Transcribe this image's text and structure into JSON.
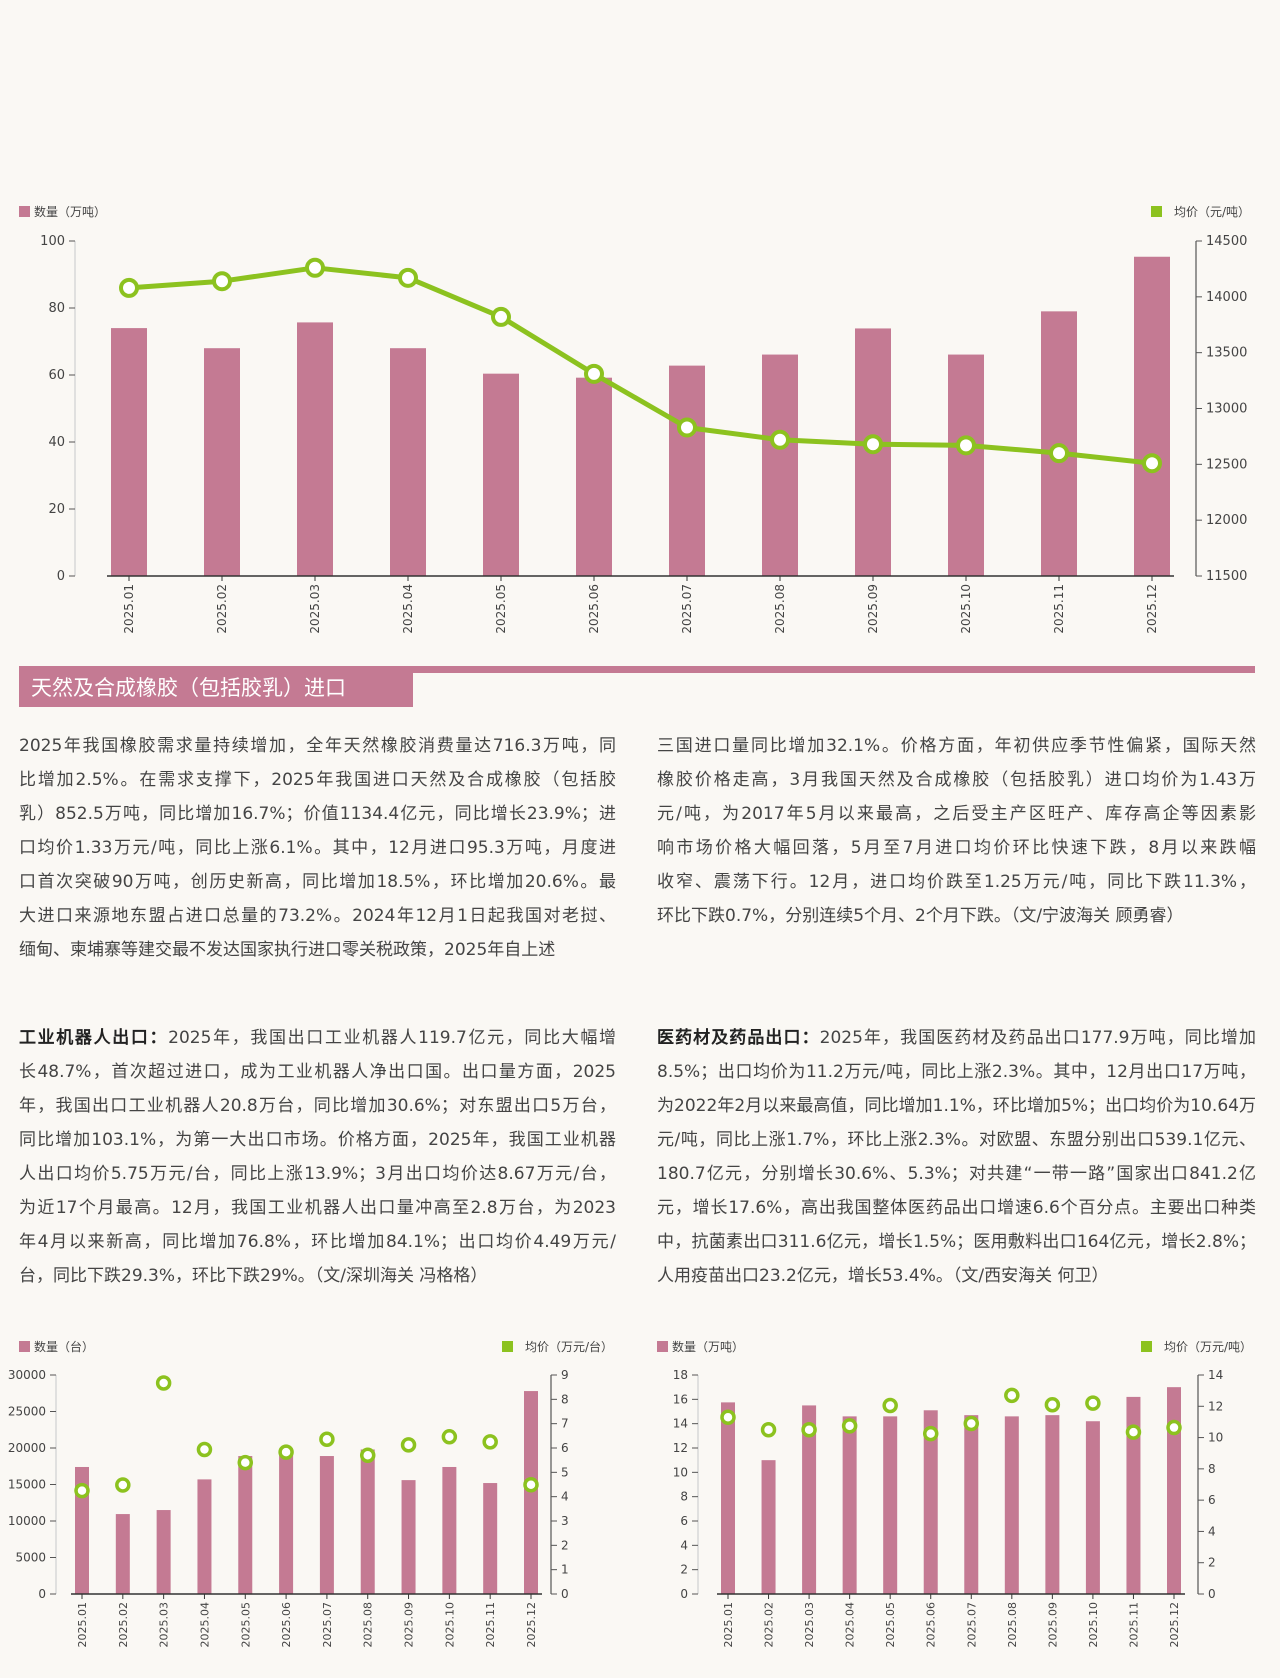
{
  "colors": {
    "bar": "#c47a93",
    "price": "#8cc21f",
    "background": "#faf8f4"
  },
  "section": {
    "title": "天然及合成橡胶（包括胶乳）进口"
  },
  "rubber_text": {
    "left_lines": [
      "2025年我国橡胶需求量持续增加，全年天然橡胶消费量达716.3万吨，同",
      "比增加2.5%。在需求支撑下，2025年我国进口天然及合成橡胶（包括胶",
      "乳）852.5万吨，同比增加16.7%；价值1134.4亿元，同比增长23.9%；进",
      "口均价1.33万元/吨，同比上涨6.1%。其中，12月进口95.3万吨，月度进",
      "口首次突破90万吨，创历史新高，同比增加18.5%，环比增加20.6%。最",
      "大进口来源地东盟占进口总量的73.2%。2024年12月1日起我国对老挝、",
      "缅甸、柬埔寨等建交最不发达国家执行进口零关税政策，2025年自上述"
    ],
    "right_lines": [
      "三国进口量同比增加32.1%。价格方面，年初供应季节性偏紧，国际天然",
      "橡胶价格走高，3月我国天然及合成橡胶（包括胶乳）进口均价为1.43万",
      "元/吨，为2017年5月以来最高，之后受主产区旺产、库存高企等因素影",
      "响市场价格大幅回落，5月至7月进口均价环比快速下跌，8月以来跌幅",
      "收窄、震荡下行。12月，进口均价跌至1.25万元/吨，同比下跌11.3%，",
      "环比下跌0.7%，分别连续5个月、2个月下跌。（文/宁波海关 顾勇睿）"
    ]
  },
  "robot_text": {
    "lead": "工业机器人出口：",
    "lines": [
      "2025年，我国出口工业机器人119.7亿元，同比大幅增",
      "长48.7%，首次超过进口，成为工业机器人净出口国。出口量方面，2025",
      "年，我国出口工业机器人20.8万台，同比增加30.6%；对东盟出口5万台，",
      "同比增加103.1%，为第一大出口市场。价格方面，2025年，我国工业机器",
      "人出口均价5.75万元/台，同比上涨13.9%；3月出口均价达8.67万元/台，",
      "为近17个月最高。12月，我国工业机器人出口量冲高至2.8万台，为2023",
      "年4月以来新高，同比增加76.8%，环比增加84.1%；出口均价4.49万元/",
      "台，同比下跌29.3%，环比下跌29%。（文/深圳海关 冯格格）"
    ]
  },
  "pharma_text": {
    "lead": "医药材及药品出口：",
    "lines": [
      "2025年，我国医药材及药品出口177.9万吨，同比增加",
      "8.5%；出口均价为11.2万元/吨，同比上涨2.3%。其中，12月出口17万吨，",
      "为2022年2月以来最高值，同比增加1.1%，环比增加5%；出口均价为10.64万",
      "元/吨，同比上涨1.7%，环比上涨2.3%。对欧盟、东盟分别出口539.1亿元、",
      "180.7亿元，分别增长30.6%、5.3%；对共建“一带一路”国家出口841.2亿",
      "元，增长17.6%，高出我国整体医药品出口增速6.6个百分点。主要出口种类",
      "中，抗菌素出口311.6亿元，增长1.5%；医用敷料出口164亿元，增长2.8%；",
      "人用疫苗出口23.2亿元，增长53.4%。（文/西安海关 何卫）"
    ]
  },
  "chart_data": [
    {
      "type": "bar",
      "id": "rubber",
      "categories": [
        "2025.01",
        "2025.02",
        "2025.03",
        "2025.04",
        "2025.05",
        "2025.06",
        "2025.07",
        "2025.08",
        "2025.09",
        "2025.10",
        "2025.11",
        "2025.12"
      ],
      "series": [
        {
          "name": "数量（万吨）",
          "type": "bar",
          "axis": "left",
          "values": [
            74,
            68,
            75.7,
            68,
            60.4,
            59.2,
            62.8,
            66.1,
            73.9,
            66.1,
            79,
            95.3
          ]
        },
        {
          "name": "均价（元/吨）",
          "type": "line",
          "axis": "right",
          "values": [
            14080,
            14140,
            14260,
            14170,
            13820,
            13310,
            12830,
            12720,
            12680,
            12670,
            12600,
            12510
          ]
        }
      ],
      "left_axis": {
        "range": [
          0,
          100
        ],
        "ticks": [
          "0",
          "20",
          "40",
          "60",
          "80",
          "100"
        ]
      },
      "right_axis": {
        "range": [
          11500,
          14500
        ],
        "ticks": [
          "11500",
          "12000",
          "12500",
          "13000",
          "13500",
          "14000",
          "14500"
        ]
      },
      "legend": {
        "left": "数量（万吨）",
        "right": "均价（元/吨）"
      }
    },
    {
      "type": "bar",
      "id": "robot",
      "categories": [
        "2025.01",
        "2025.02",
        "2025.03",
        "2025.04",
        "2025.05",
        "2025.06",
        "2025.07",
        "2025.08",
        "2025.09",
        "2025.10",
        "2025.11",
        "2025.12"
      ],
      "series": [
        {
          "name": "数量（台）",
          "type": "bar",
          "axis": "left",
          "values": [
            17400,
            10950,
            11500,
            15700,
            18900,
            19350,
            18900,
            19800,
            15600,
            17400,
            15200,
            27800
          ]
        },
        {
          "name": "均价（万元/台）",
          "type": "scatter",
          "axis": "right",
          "values": [
            4.25,
            4.48,
            8.67,
            5.94,
            5.4,
            5.83,
            6.36,
            5.7,
            6.13,
            6.46,
            6.25,
            4.49
          ]
        }
      ],
      "left_axis": {
        "range": [
          0,
          30000
        ],
        "ticks": [
          "0",
          "5000",
          "10000",
          "15000",
          "20000",
          "25000",
          "30000"
        ]
      },
      "right_axis": {
        "range": [
          0,
          9
        ],
        "ticks": [
          "0",
          "1",
          "2",
          "3",
          "4",
          "5",
          "6",
          "7",
          "8",
          "9"
        ]
      },
      "legend": {
        "left": "数量（台）",
        "right": "均价（万元/台）"
      }
    },
    {
      "type": "bar",
      "id": "pharma",
      "categories": [
        "2025.01",
        "2025.02",
        "2025.03",
        "2025.04",
        "2025.05",
        "2025.06",
        "2025.07",
        "2025.08",
        "2025.09",
        "2025.10",
        "2025.11",
        "2025.12"
      ],
      "series": [
        {
          "name": "数量（万吨）",
          "type": "bar",
          "axis": "left",
          "values": [
            15.75,
            11.0,
            15.5,
            14.6,
            14.6,
            15.1,
            14.7,
            14.6,
            14.7,
            14.2,
            16.2,
            17.0
          ]
        },
        {
          "name": "均价（万元/吨）",
          "type": "scatter",
          "axis": "right",
          "values": [
            11.3,
            10.5,
            10.5,
            10.75,
            12.05,
            10.25,
            10.9,
            12.7,
            12.1,
            12.2,
            10.35,
            10.64
          ]
        }
      ],
      "left_axis": {
        "range": [
          0,
          18
        ],
        "ticks": [
          "0",
          "2",
          "4",
          "6",
          "8",
          "10",
          "12",
          "14",
          "16",
          "18"
        ]
      },
      "right_axis": {
        "range": [
          0,
          14
        ],
        "ticks": [
          "0",
          "2",
          "4",
          "6",
          "8",
          "10",
          "12",
          "14"
        ]
      },
      "legend": {
        "left": "数量（万吨）",
        "right": "均价（万元/吨）"
      }
    }
  ]
}
